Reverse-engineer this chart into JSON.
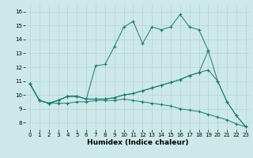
{
  "title": "",
  "xlabel": "Humidex (Indice chaleur)",
  "ylabel": "",
  "bg_color": "#cce8e8",
  "line_color": "#1a7a6e",
  "marker": "+",
  "xlim": [
    -0.5,
    23.5
  ],
  "ylim": [
    7.5,
    16.5
  ],
  "xticks": [
    0,
    1,
    2,
    3,
    4,
    5,
    6,
    7,
    8,
    9,
    10,
    11,
    12,
    13,
    14,
    15,
    16,
    17,
    18,
    19,
    20,
    21,
    22,
    23
  ],
  "yticks": [
    8,
    9,
    10,
    11,
    12,
    13,
    14,
    15,
    16
  ],
  "series": [
    [
      10.8,
      9.6,
      9.4,
      9.6,
      9.9,
      9.9,
      9.7,
      12.1,
      12.2,
      13.5,
      14.9,
      15.3,
      13.7,
      14.9,
      14.7,
      14.9,
      15.8,
      14.9,
      14.7,
      13.2,
      11.0,
      9.5,
      8.5,
      7.7
    ],
    [
      10.8,
      9.6,
      9.4,
      9.6,
      9.9,
      9.9,
      9.7,
      9.7,
      9.7,
      9.8,
      10.0,
      10.1,
      10.3,
      10.5,
      10.7,
      10.9,
      11.1,
      11.4,
      11.6,
      13.2,
      null,
      null,
      null,
      null
    ],
    [
      10.8,
      9.6,
      9.4,
      9.4,
      9.4,
      9.5,
      9.5,
      9.6,
      9.6,
      9.6,
      9.7,
      9.6,
      9.5,
      9.4,
      9.3,
      9.2,
      9.0,
      8.9,
      8.8,
      8.6,
      8.4,
      8.2,
      7.9,
      7.7
    ],
    [
      10.8,
      9.6,
      9.4,
      9.6,
      9.9,
      9.9,
      9.7,
      9.7,
      9.7,
      9.8,
      10.0,
      10.1,
      10.3,
      10.5,
      10.7,
      10.9,
      11.1,
      11.4,
      11.6,
      11.8,
      11.0,
      9.5,
      8.5,
      7.7
    ]
  ],
  "grid_color": "#b0d0d0",
  "xlabel_fontsize": 6.5,
  "tick_fontsize": 5.0,
  "lw": 0.7,
  "ms": 2.5,
  "mew": 0.8
}
